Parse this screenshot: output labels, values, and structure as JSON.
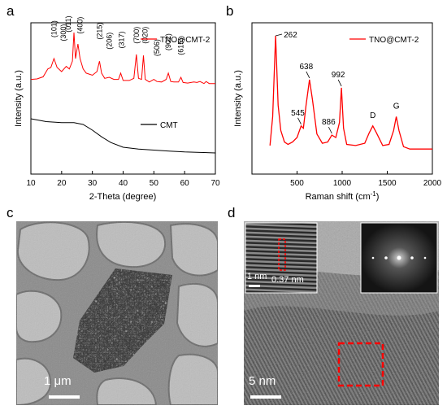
{
  "panels": {
    "a": "a",
    "b": "b",
    "c": "c",
    "d": "d"
  },
  "chart_data": [
    {
      "type": "line",
      "panel": "a",
      "xlabel": "2-Theta (degree)",
      "ylabel": "Intensity (a.u.)",
      "xlim": [
        10,
        70
      ],
      "x_ticks": [
        "10",
        "20",
        "30",
        "40",
        "50",
        "60",
        "70"
      ],
      "legend_position": "top-right",
      "series": [
        {
          "name": "TNO@CMT-2",
          "color": "#ff0000",
          "x": [
            10,
            12,
            14,
            15.5,
            16.5,
            17.5,
            18.5,
            20,
            21.5,
            22.5,
            23.5,
            24,
            24.5,
            25.3,
            26,
            27,
            28,
            30,
            31.5,
            32.3,
            33,
            34,
            35.5,
            37,
            38.5,
            39.2,
            40,
            42,
            43.5,
            44.3,
            45,
            46,
            46.6,
            47.2,
            48.5,
            50,
            51,
            52.5,
            54,
            54.7,
            55.5,
            56.5,
            58,
            58.8,
            59.5,
            61,
            63,
            64,
            65,
            66.3,
            67,
            68,
            70
          ],
          "values": [
            0.1,
            0.11,
            0.15,
            0.3,
            0.33,
            0.5,
            0.33,
            0.25,
            0.35,
            0.3,
            0.45,
            1.0,
            0.5,
            0.78,
            0.5,
            0.3,
            0.22,
            0.18,
            0.25,
            0.45,
            0.22,
            0.12,
            0.14,
            0.1,
            0.1,
            0.22,
            0.08,
            0.08,
            0.12,
            0.58,
            0.12,
            0.1,
            0.56,
            0.1,
            0.05,
            0.1,
            0.06,
            0.05,
            0.1,
            0.22,
            0.06,
            0.05,
            0.05,
            0.14,
            0.04,
            0.03,
            0.05,
            0.04,
            0.06,
            0.02,
            0.06,
            0.02,
            0.02
          ]
        },
        {
          "name": "CMT",
          "color": "#000000",
          "x": [
            10,
            15,
            20,
            24,
            27,
            30,
            33,
            36,
            40,
            45,
            50,
            55,
            60,
            65,
            70
          ],
          "values": [
            0.62,
            0.59,
            0.58,
            0.58,
            0.56,
            0.5,
            0.43,
            0.37,
            0.32,
            0.3,
            0.29,
            0.28,
            0.27,
            0.265,
            0.26
          ]
        }
      ],
      "peak_labels": [
        {
          "label": "(101)",
          "x": 17.5,
          "y": 0.78
        },
        {
          "label": "(300)",
          "x": 20.6,
          "y": 0.71
        },
        {
          "label": "(011)",
          "x": 22.2,
          "y": 0.88
        },
        {
          "label": "(400)",
          "x": 26.0,
          "y": 0.85
        },
        {
          "label": "(215)",
          "x": 32.3,
          "y": 0.74
        },
        {
          "label": "(206)",
          "x": 35.5,
          "y": 0.55
        },
        {
          "label": "(317)",
          "x": 39.5,
          "y": 0.57
        },
        {
          "label": "(700)",
          "x": 44.3,
          "y": 0.66
        },
        {
          "label": "(020)",
          "x": 47.2,
          "y": 0.66
        },
        {
          "label": "(506)",
          "x": 51.0,
          "y": 0.42
        },
        {
          "label": "(902)",
          "x": 54.7,
          "y": 0.53
        },
        {
          "label": "(615)",
          "x": 58.8,
          "y": 0.44
        }
      ]
    },
    {
      "type": "line",
      "panel": "b",
      "xlabel": "Raman shift (cm",
      "xlabel_sup": "-1",
      "xlabel_end": ")",
      "ylabel": "Intensity (a.u.)",
      "xlim": [
        0,
        2000
      ],
      "x_ticks": [
        "500",
        "1000",
        "1500",
        "2000"
      ],
      "legend_position": "top-right",
      "series": [
        {
          "name": "TNO@CMT-2",
          "color": "#ff0000",
          "x": [
            200,
            230,
            262,
            290,
            320,
            360,
            400,
            450,
            500,
            545,
            570,
            600,
            638,
            670,
            720,
            780,
            840,
            886,
            930,
            970,
            992,
            1015,
            1050,
            1150,
            1250,
            1300,
            1340,
            1380,
            1450,
            1520,
            1570,
            1600,
            1630,
            1680,
            1750,
            1850,
            1950,
            2000
          ],
          "values": [
            0.05,
            0.3,
            1.0,
            0.4,
            0.18,
            0.08,
            0.06,
            0.08,
            0.12,
            0.22,
            0.2,
            0.4,
            0.62,
            0.45,
            0.15,
            0.07,
            0.08,
            0.14,
            0.12,
            0.25,
            0.55,
            0.2,
            0.06,
            0.05,
            0.07,
            0.16,
            0.22,
            0.16,
            0.05,
            0.06,
            0.18,
            0.3,
            0.18,
            0.04,
            0.02,
            0.02,
            0.02,
            0.02
          ]
        }
      ],
      "peak_labels": [
        {
          "label": "262",
          "x": 262
        },
        {
          "label": "545",
          "x": 545
        },
        {
          "label": "638",
          "x": 638
        },
        {
          "label": "886",
          "x": 886
        },
        {
          "label": "992",
          "x": 992
        },
        {
          "label": "D",
          "x": 1340
        },
        {
          "label": "G",
          "x": 1600
        }
      ]
    }
  ],
  "micrographs": {
    "c": {
      "scale_bar": "1 μm"
    },
    "d": {
      "scale_bar": "5 nm",
      "inset_scale": "1 nm",
      "d_spacing": "0.37 nm"
    }
  },
  "colors": {
    "tno": "#ff0000",
    "cmt": "#000000",
    "scale_bar": "#ffffff",
    "roi_box": "#ff0000"
  }
}
